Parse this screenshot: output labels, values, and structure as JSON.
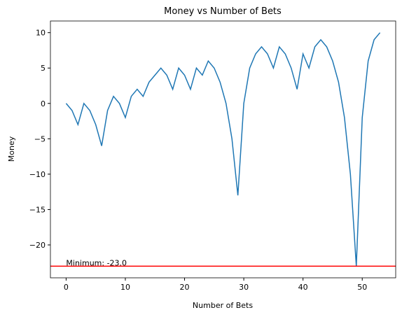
{
  "chart_data": {
    "type": "line",
    "title": "Money vs Number of Bets",
    "x_label": "Number of Bets",
    "y_label": "Money",
    "x": [
      0,
      1,
      2,
      3,
      4,
      5,
      6,
      7,
      8,
      9,
      10,
      11,
      12,
      13,
      14,
      15,
      16,
      17,
      18,
      19,
      20,
      21,
      22,
      23,
      24,
      25,
      26,
      27,
      28,
      29,
      30,
      31,
      32,
      33,
      34,
      35,
      36,
      37,
      38,
      39,
      40,
      41,
      42,
      43,
      44,
      45,
      46,
      47,
      48,
      49,
      50,
      51,
      52,
      53
    ],
    "series": [
      {
        "color": "#1f77b4",
        "values": [
          0,
          -1,
          -3,
          0,
          -1,
          -3,
          -6,
          -1,
          1,
          0,
          -2,
          1,
          2,
          1,
          3,
          4,
          5,
          4,
          2,
          5,
          4,
          2,
          5,
          4,
          6,
          5,
          3,
          0,
          -5,
          -13,
          0,
          5,
          7,
          8,
          7,
          5,
          8,
          7,
          5,
          2,
          7,
          5,
          8,
          9,
          8,
          6,
          3,
          -2,
          -10,
          -23,
          -2,
          6,
          9,
          10
        ]
      }
    ],
    "hline": {
      "value": -23,
      "color": "#ff0000",
      "label": "Minimum: -23.0"
    },
    "xlim": [
      -2.65,
      55.65
    ],
    "ylim": [
      -24.65,
      11.65
    ],
    "xticks": [
      0,
      10,
      20,
      30,
      40,
      50
    ],
    "yticks": [
      {
        "value": -20,
        "label": "−20"
      },
      {
        "value": -15,
        "label": "−15"
      },
      {
        "value": -10,
        "label": "−10"
      },
      {
        "value": -5,
        "label": "−5"
      },
      0,
      5,
      10
    ],
    "grid": false
  }
}
